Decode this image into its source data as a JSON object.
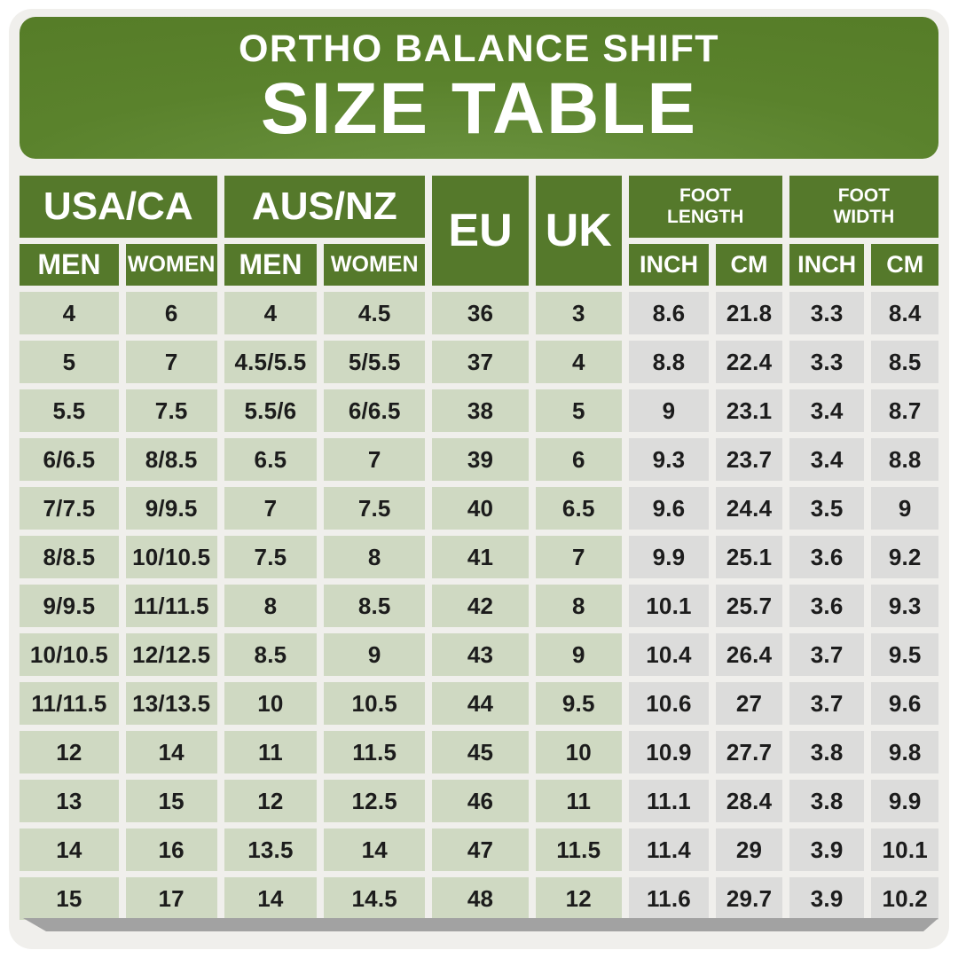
{
  "banner": {
    "line1": "ORTHO BALANCE SHIFT",
    "line2": "SIZE TABLE"
  },
  "header": {
    "usa": {
      "label": "USA/CA",
      "men": "MEN",
      "women": "WOMEN"
    },
    "aus": {
      "label": "AUS/NZ",
      "men": "MEN",
      "women": "WOMEN"
    },
    "eu": "EU",
    "uk": "UK",
    "foot_length": {
      "label": "FOOT LENGTH",
      "inch": "INCH",
      "cm": "CM"
    },
    "foot_width": {
      "label": "FOOT WIDTH",
      "inch": "INCH",
      "cm": "CM"
    }
  },
  "chart_data": {
    "type": "table",
    "title": "ORTHO BALANCE SHIFT SIZE TABLE",
    "columns": [
      "USA/CA MEN",
      "USA/CA WOMEN",
      "AUS/NZ MEN",
      "AUS/NZ WOMEN",
      "EU",
      "UK",
      "FOOT LENGTH INCH",
      "FOOT LENGTH CM",
      "FOOT WIDTH INCH",
      "FOOT WIDTH CM"
    ],
    "rows": [
      [
        "4",
        "6",
        "4",
        "4.5",
        "36",
        "3",
        "8.6",
        "21.8",
        "3.3",
        "8.4"
      ],
      [
        "5",
        "7",
        "4.5/5.5",
        "5/5.5",
        "37",
        "4",
        "8.8",
        "22.4",
        "3.3",
        "8.5"
      ],
      [
        "5.5",
        "7.5",
        "5.5/6",
        "6/6.5",
        "38",
        "5",
        "9",
        "23.1",
        "3.4",
        "8.7"
      ],
      [
        "6/6.5",
        "8/8.5",
        "6.5",
        "7",
        "39",
        "6",
        "9.3",
        "23.7",
        "3.4",
        "8.8"
      ],
      [
        "7/7.5",
        "9/9.5",
        "7",
        "7.5",
        "40",
        "6.5",
        "9.6",
        "24.4",
        "3.5",
        "9"
      ],
      [
        "8/8.5",
        "10/10.5",
        "7.5",
        "8",
        "41",
        "7",
        "9.9",
        "25.1",
        "3.6",
        "9.2"
      ],
      [
        "9/9.5",
        "11/11.5",
        "8",
        "8.5",
        "42",
        "8",
        "10.1",
        "25.7",
        "3.6",
        "9.3"
      ],
      [
        "10/10.5",
        "12/12.5",
        "8.5",
        "9",
        "43",
        "9",
        "10.4",
        "26.4",
        "3.7",
        "9.5"
      ],
      [
        "11/11.5",
        "13/13.5",
        "10",
        "10.5",
        "44",
        "9.5",
        "10.6",
        "27",
        "3.7",
        "9.6"
      ],
      [
        "12",
        "14",
        "11",
        "11.5",
        "45",
        "10",
        "10.9",
        "27.7",
        "3.8",
        "9.8"
      ],
      [
        "13",
        "15",
        "12",
        "12.5",
        "46",
        "11",
        "11.1",
        "28.4",
        "3.8",
        "9.9"
      ],
      [
        "14",
        "16",
        "13.5",
        "14",
        "47",
        "11.5",
        "11.4",
        "29",
        "3.9",
        "10.1"
      ],
      [
        "15",
        "17",
        "14",
        "14.5",
        "48",
        "12",
        "11.6",
        "29.7",
        "3.9",
        "10.2"
      ]
    ]
  },
  "colors": {
    "banner_green": "#567d28",
    "header_green": "#55792b",
    "cell_green": "#cfd9c2",
    "cell_gray": "#dcdcdb",
    "panel_bg": "#f0efec",
    "text_dark": "#1c1c1c",
    "text_white": "#ffffff",
    "shadow": "#a2a2a2"
  }
}
